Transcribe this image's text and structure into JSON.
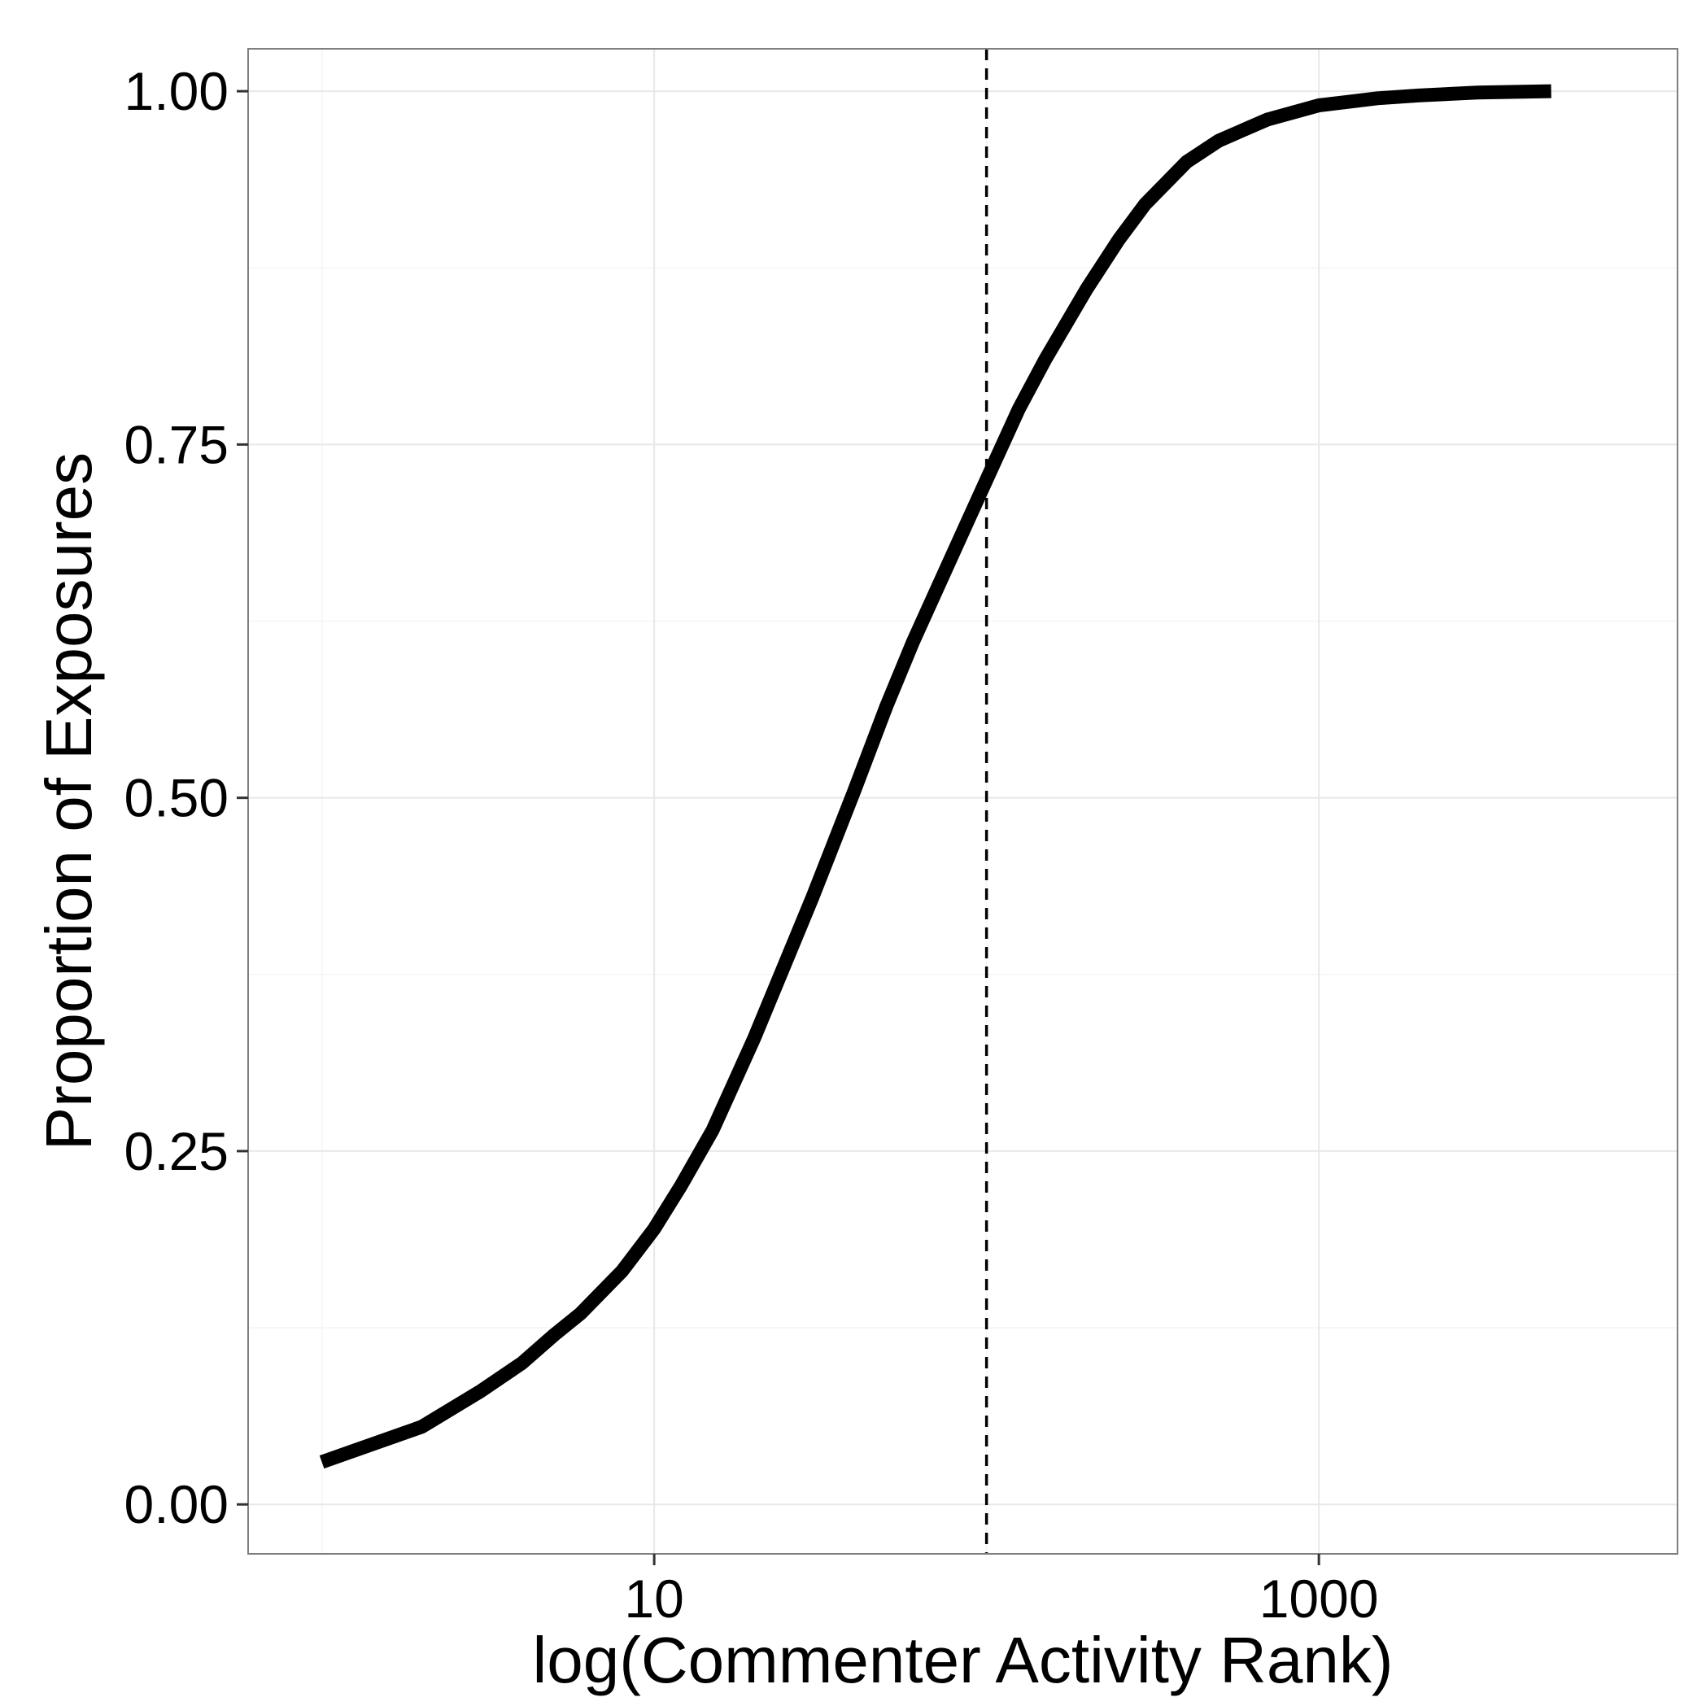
{
  "chart_data": {
    "type": "line",
    "xlabel": "log(Commenter Activity Rank)",
    "ylabel": "Proportion of Exposures",
    "x_scale": "log10",
    "xlim": [
      0.6,
      12000
    ],
    "ylim": [
      -0.035,
      1.03
    ],
    "x_ticks": [
      10,
      1000
    ],
    "x_tick_labels": [
      "10",
      "1000"
    ],
    "x_minor_ticks": [
      1,
      100
    ],
    "y_ticks": [
      0,
      0.25,
      0.5,
      0.75,
      1.0
    ],
    "y_tick_labels": [
      "0.00",
      "0.25",
      "0.50",
      "0.75",
      "1.00"
    ],
    "y_minor_ticks": [
      0.125,
      0.375,
      0.625,
      0.875
    ],
    "grid": true,
    "legend": "none",
    "series": [
      {
        "color": "#000000",
        "x": [
          1,
          2,
          3,
          4,
          5,
          6,
          8,
          10,
          12,
          15,
          20,
          25,
          30,
          40,
          50,
          60,
          80,
          100,
          125,
          150,
          200,
          250,
          300,
          400,
          500,
          700,
          1000,
          1500,
          2000,
          3000,
          5000
        ],
        "y": [
          0.03,
          0.055,
          0.08,
          0.1,
          0.12,
          0.135,
          0.165,
          0.195,
          0.225,
          0.265,
          0.33,
          0.385,
          0.43,
          0.505,
          0.565,
          0.61,
          0.675,
          0.725,
          0.775,
          0.81,
          0.86,
          0.895,
          0.92,
          0.95,
          0.965,
          0.98,
          0.99,
          0.995,
          0.997,
          0.999,
          1.0
        ]
      }
    ],
    "reference_lines": [
      {
        "orientation": "vertical",
        "x": 100,
        "style": "dashed",
        "color": "#000000"
      }
    ]
  },
  "colors": {
    "panel_border": "#7f7f7f",
    "grid_major": "#e8e8e8",
    "grid_minor": "#f4f4f4",
    "line": "#000000"
  }
}
